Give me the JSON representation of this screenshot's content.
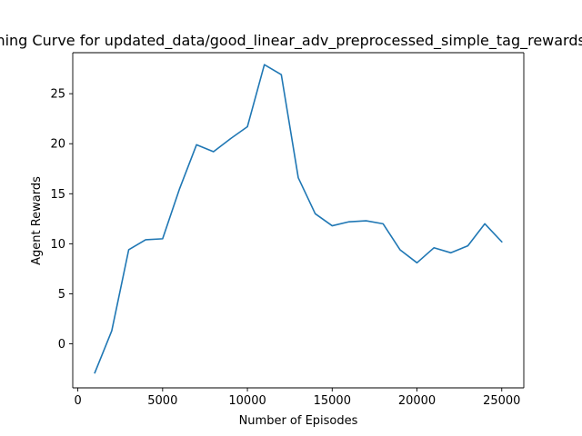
{
  "chart_data": {
    "type": "line",
    "title": "Training Curve for updated_data/good_linear_adv_preprocessed_simple_tag_rewards.pkl",
    "xlabel": "Number of Episodes",
    "ylabel": "Agent Rewards",
    "xlim": [
      -300,
      26300
    ],
    "ylim": [
      -4.4,
      29.1
    ],
    "xticks": [
      0,
      5000,
      10000,
      15000,
      20000,
      25000
    ],
    "yticks": [
      0,
      5,
      10,
      15,
      20,
      25
    ],
    "grid": false,
    "legend": "none",
    "series": [
      {
        "color": "#1f77b4",
        "x": [
          1000,
          2000,
          3000,
          4000,
          5000,
          6000,
          7000,
          8000,
          9000,
          10000,
          11000,
          12000,
          13000,
          14000,
          15000,
          16000,
          17000,
          18000,
          19000,
          20000,
          21000,
          22000,
          23000,
          24000,
          25000
        ],
        "y": [
          -2.9,
          1.3,
          9.4,
          10.4,
          10.5,
          15.5,
          19.9,
          19.2,
          20.5,
          21.7,
          27.9,
          26.9,
          16.6,
          13.0,
          11.8,
          12.2,
          12.3,
          12.0,
          9.4,
          8.1,
          9.6,
          9.1,
          9.8,
          12.0,
          10.2
        ]
      }
    ]
  }
}
